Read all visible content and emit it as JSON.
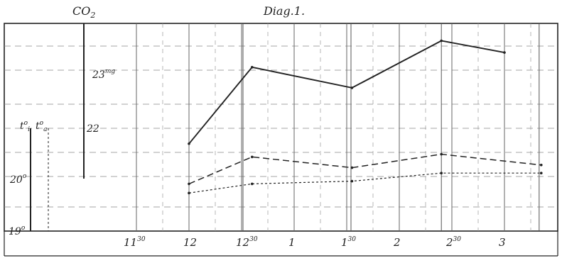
{
  "chart_data": {
    "type": "line",
    "title": "Diag.1.",
    "co2_axis_label": "CO",
    "co2_axis_sub": "2",
    "co2_ticks": [
      {
        "main": "23",
        "sup": "mg"
      },
      {
        "main": "22",
        "sup": ""
      }
    ],
    "temp_axis_label_1": "t",
    "temp_axis_label_1_sup": "o",
    "temp_axis_label_1_sub": "i",
    "temp_axis_label_2": "t",
    "temp_axis_label_2_sup": "o",
    "temp_axis_label_2_sub": "a",
    "temp_ticks": [
      {
        "main": "20",
        "sup": "o"
      },
      {
        "main": "19",
        "sup": "o"
      }
    ],
    "x_ticks": [
      {
        "main": "11",
        "sup": "30"
      },
      {
        "main": "12",
        "sup": ""
      },
      {
        "main": "12",
        "sup": "30"
      },
      {
        "main": "1",
        "sup": ""
      },
      {
        "main": "1",
        "sup": "30"
      },
      {
        "main": "2",
        "sup": ""
      },
      {
        "main": "2",
        "sup": "30"
      },
      {
        "main": "3",
        "sup": ""
      }
    ],
    "series": [
      {
        "style": "solid",
        "x": [
          12.0,
          12.6,
          13.55,
          14.4,
          15.0
        ],
        "y": [
          21.75,
          23.05,
          22.7,
          23.5,
          23.3
        ]
      },
      {
        "style": "dashed",
        "x": [
          12.0,
          12.6,
          13.55,
          14.4,
          15.35
        ],
        "y": [
          19.85,
          20.35,
          20.15,
          20.4,
          20.2
        ]
      },
      {
        "style": "dotted",
        "x": [
          12.0,
          12.6,
          13.55,
          14.4,
          15.35
        ],
        "y": [
          19.68,
          19.85,
          19.9,
          20.05,
          20.05
        ]
      }
    ],
    "grid": true
  }
}
